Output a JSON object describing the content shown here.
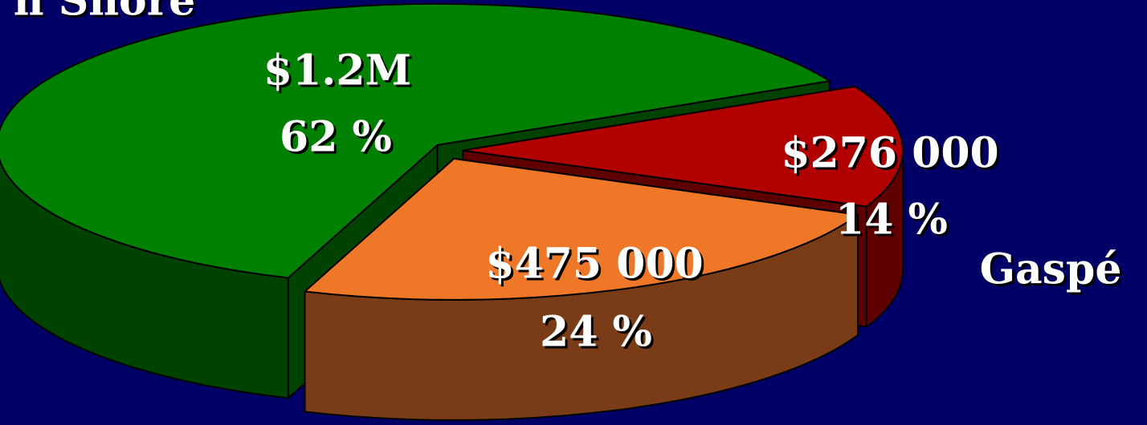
{
  "chart_data": {
    "type": "pie",
    "categories": [
      "Gaspé",
      null,
      "h Shore"
    ],
    "values": [
      14,
      24,
      62
    ],
    "value_labels": [
      "14 %",
      "24 %",
      "62 %"
    ],
    "amounts": [
      276000,
      475000,
      1200000
    ],
    "amount_labels": [
      "$276 000",
      "$475 000",
      "$1.2M"
    ],
    "colors": [
      "#b00000",
      "#ee7828",
      "#008000"
    ],
    "side_colors": [
      "#5e0000",
      "#7a3c16",
      "#004200"
    ],
    "background": "#000066"
  }
}
